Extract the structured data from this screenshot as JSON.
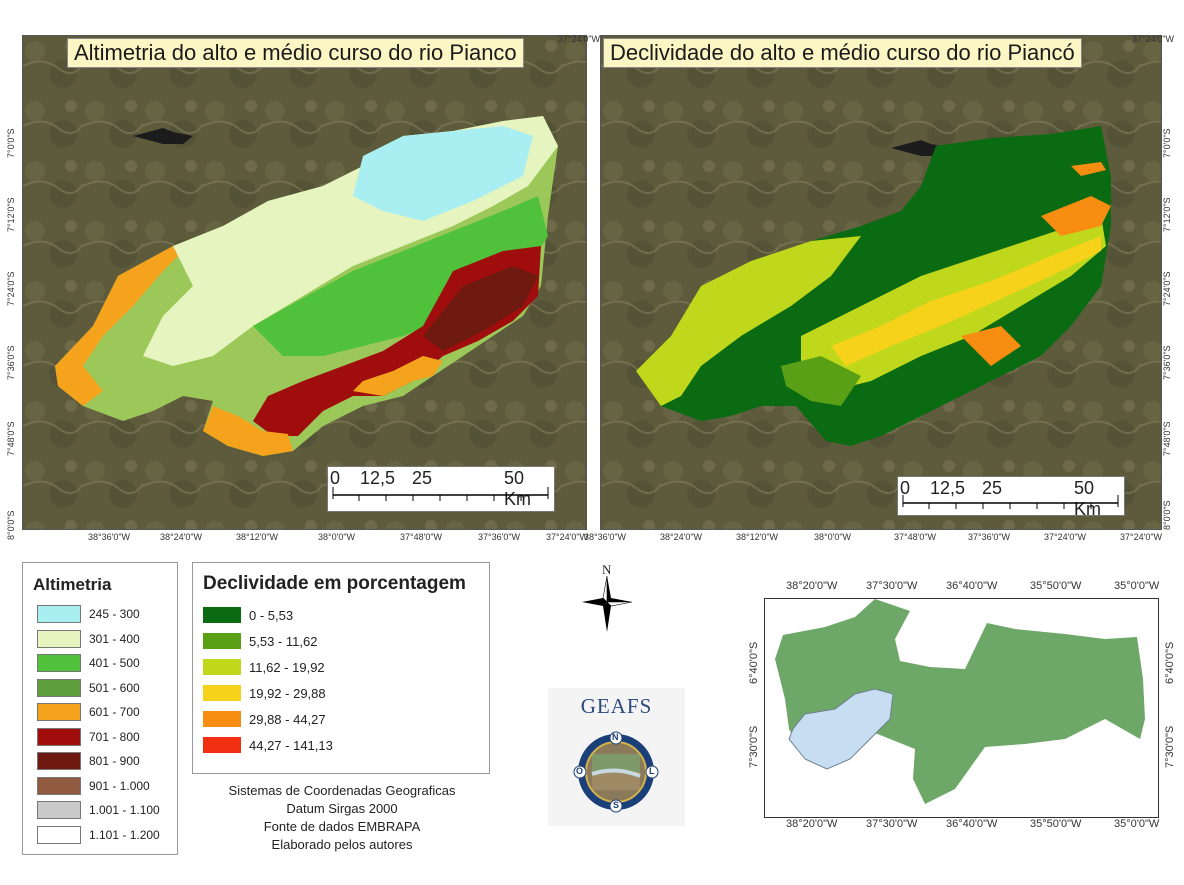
{
  "map_left": {
    "title": "Altimetria do alto e médio curso do rio Pianco",
    "top_right_label": "37°24'0\"W",
    "lat_labels": [
      "7°0'0\"S",
      "7°12'0\"S",
      "7°24'0\"S",
      "7°36'0\"S",
      "7°48'0\"S",
      "8°0'0\"S"
    ],
    "lon_labels": [
      "38°36'0\"W",
      "38°24'0\"W",
      "38°12'0\"W",
      "38°0'0\"W",
      "37°48'0\"W",
      "37°36'0\"W",
      "37°24'0\"W"
    ],
    "scale": {
      "ticks": [
        "0",
        "12,5",
        "25",
        "50 Km"
      ]
    }
  },
  "map_right": {
    "title": "Declividade do alto e médio curso do rio Piancó",
    "top_right_label": "37°24'0\"W",
    "lat_labels": [
      "7°0'0\"S",
      "7°12'0\"S",
      "7°24'0\"S",
      "7°36'0\"S",
      "7°48'0\"S",
      "8°0'0\"S"
    ],
    "lon_labels": [
      "38°36'0\"W",
      "38°24'0\"W",
      "38°12'0\"W",
      "38°0'0\"W",
      "37°48'0\"W",
      "37°36'0\"W",
      "37°24'0\"W"
    ],
    "scale": {
      "ticks": [
        "0",
        "12,5",
        "25",
        "50 Km"
      ]
    }
  },
  "legend_altimetria": {
    "title": "Altimetria",
    "items": [
      {
        "label": "245 - 300",
        "color": "#a9eef0"
      },
      {
        "label": "301 - 400",
        "color": "#e6f5c0"
      },
      {
        "label": "401 - 500",
        "color": "#4fc13b"
      },
      {
        "label": "501 - 600",
        "color": "#5f9e3c"
      },
      {
        "label": "601 - 700",
        "color": "#f5a21c"
      },
      {
        "label": "701 - 800",
        "color": "#a00d0d"
      },
      {
        "label": "801 - 900",
        "color": "#6e1a10"
      },
      {
        "label": "901 - 1.000",
        "color": "#8f5a3f"
      },
      {
        "label": "1.001 - 1.100",
        "color": "#c9c9c9"
      },
      {
        "label": "1.101 - 1.200",
        "color": "#ffffff"
      }
    ]
  },
  "legend_declividade": {
    "title": "Declividade em porcentagem",
    "items": [
      {
        "label": "0 - 5,53",
        "color": "#0b6b12"
      },
      {
        "label": "5,53 - 11,62",
        "color": "#5aa017"
      },
      {
        "label": "11,62 - 19,92",
        "color": "#bfd81c"
      },
      {
        "label": "19,92 - 29,88",
        "color": "#f7d21a"
      },
      {
        "label": "29,88 - 44,27",
        "color": "#f78e12"
      },
      {
        "label": "44,27 - 141,13",
        "color": "#f22f10"
      }
    ]
  },
  "credits": {
    "line1": "Sistemas de Coordenadas Geograficas",
    "line2": "Datum Sirgas 2000",
    "line3": "Fonte de dados EMBRAPA",
    "line4": "Elaborado pelos autores"
  },
  "north_arrow": {
    "label": "N"
  },
  "logo": {
    "text": "GEAFS",
    "compass": [
      "N",
      "O",
      "L",
      "S"
    ]
  },
  "locator": {
    "top_labels": [
      "38°20'0\"W",
      "37°30'0\"W",
      "36°40'0\"W",
      "35°50'0\"W",
      "35°0'0\"W"
    ],
    "bottom_labels": [
      "38°20'0\"W",
      "37°30'0\"W",
      "36°40'0\"W",
      "35°50'0\"W",
      "35°0'0\"W"
    ],
    "left_labels": [
      "6°40'0\"S",
      "7°30'0\"S"
    ],
    "right_labels": [
      "6°40'0\"S",
      "7°30'0\"S"
    ],
    "state_color": "#6ea868",
    "basin_color": "#c6ddf2"
  }
}
